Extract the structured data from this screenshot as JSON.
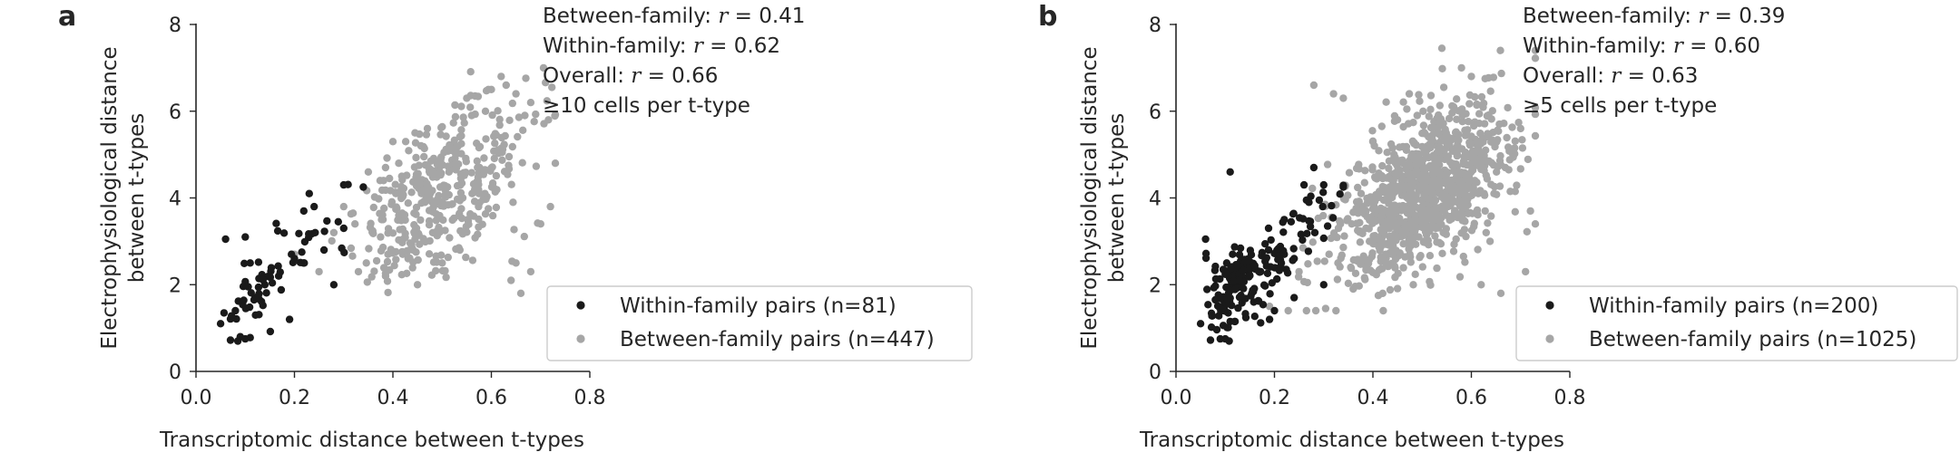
{
  "chart_data": [
    {
      "type": "scatter",
      "panel_label": "a",
      "xlabel": "Transcriptomic distance between t-types",
      "ylabel": [
        "Electrophysiological distance",
        "between t-types"
      ],
      "xlim": [
        0.0,
        0.8
      ],
      "ylim": [
        0,
        8
      ],
      "xticks": [
        "0.0",
        "0.2",
        "0.4",
        "0.6",
        "0.8"
      ],
      "yticks": [
        "0",
        "2",
        "4",
        "6",
        "8"
      ],
      "grid": false,
      "legend_position": "lower-right",
      "stats": [
        {
          "name": "Between-family",
          "r": "0.41"
        },
        {
          "name": "Within-family",
          "r": "0.62"
        },
        {
          "name": "Overall",
          "r": "0.66"
        }
      ],
      "note": "≥10 cells per t-type",
      "series": [
        {
          "name": "Within-family pairs (n=81)",
          "color": "#1a1a1a",
          "count": 81,
          "points": [
            [
              0.05,
              1.1
            ],
            [
              0.06,
              3.05
            ],
            [
              0.1,
              3.1
            ],
            [
              0.07,
              0.72
            ],
            [
              0.1,
              0.75
            ],
            [
              0.11,
              0.78
            ],
            [
              0.09,
              0.8
            ],
            [
              0.19,
              1.2
            ],
            [
              0.08,
              1.4
            ],
            [
              0.12,
              1.7
            ],
            [
              0.14,
              2.0
            ],
            [
              0.22,
              2.5
            ],
            [
              0.24,
              3.8
            ],
            [
              0.23,
              4.1
            ],
            [
              0.3,
              4.3
            ],
            [
              0.34,
              4.25
            ],
            [
              0.26,
              2.8
            ],
            [
              0.28,
              2.0
            ],
            [
              0.2,
              2.6
            ],
            [
              0.3,
              3.3
            ]
          ]
        },
        {
          "name": "Between-family pairs (n=447)",
          "color": "#a6a6a6",
          "count": 447,
          "points": [
            [
              0.2,
              2.7
            ],
            [
              0.25,
              2.3
            ],
            [
              0.28,
              3.2
            ],
            [
              0.3,
              3.8
            ],
            [
              0.33,
              2.3
            ],
            [
              0.38,
              3.5
            ],
            [
              0.42,
              2.7
            ],
            [
              0.45,
              2.0
            ],
            [
              0.5,
              2.5
            ],
            [
              0.62,
              6.8
            ],
            [
              0.6,
              6.5
            ],
            [
              0.63,
              6.6
            ],
            [
              0.65,
              6.4
            ],
            [
              0.7,
              3.4
            ],
            [
              0.72,
              3.8
            ],
            [
              0.68,
              2.3
            ],
            [
              0.65,
              2.5
            ],
            [
              0.55,
              6.3
            ],
            [
              0.4,
              5.3
            ],
            [
              0.47,
              5.6
            ],
            [
              0.35,
              4.6
            ],
            [
              0.66,
              1.8
            ],
            [
              0.64,
              2.1
            ]
          ]
        }
      ]
    },
    {
      "type": "scatter",
      "panel_label": "b",
      "xlabel": "Transcriptomic distance between t-types",
      "ylabel": [
        "Electrophysiological distance",
        "between t-types"
      ],
      "xlim": [
        0.0,
        0.8
      ],
      "ylim": [
        0,
        8
      ],
      "xticks": [
        "0.0",
        "0.2",
        "0.4",
        "0.6",
        "0.8"
      ],
      "yticks": [
        "0",
        "2",
        "4",
        "6",
        "8"
      ],
      "grid": false,
      "legend_position": "lower-right",
      "stats": [
        {
          "name": "Between-family",
          "r": "0.39"
        },
        {
          "name": "Within-family",
          "r": "0.60"
        },
        {
          "name": "Overall",
          "r": "0.63"
        }
      ],
      "note": "≥5 cells per t-type",
      "series": [
        {
          "name": "Within-family pairs (n=200)",
          "color": "#1a1a1a",
          "count": 200,
          "points": [
            [
              0.05,
              1.1
            ],
            [
              0.06,
              3.05
            ],
            [
              0.07,
              0.72
            ],
            [
              0.1,
              0.75
            ],
            [
              0.11,
              4.6
            ],
            [
              0.19,
              1.2
            ],
            [
              0.22,
              3.5
            ],
            [
              0.26,
              4.3
            ],
            [
              0.28,
              4.7
            ],
            [
              0.3,
              4.3
            ],
            [
              0.34,
              4.25
            ],
            [
              0.24,
              1.7
            ],
            [
              0.2,
              1.4
            ],
            [
              0.3,
              2.0
            ],
            [
              0.27,
              3.9
            ]
          ]
        },
        {
          "name": "Between-family pairs (n=1025)",
          "color": "#a6a6a6",
          "count": 1025,
          "points": [
            [
              0.19,
              1.5
            ],
            [
              0.28,
              6.6
            ],
            [
              0.32,
              6.4
            ],
            [
              0.34,
              6.3
            ],
            [
              0.25,
              2.3
            ],
            [
              0.36,
              1.9
            ],
            [
              0.42,
              1.8
            ],
            [
              0.54,
              7.45
            ],
            [
              0.58,
              7.0
            ],
            [
              0.6,
              6.8
            ],
            [
              0.72,
              3.7
            ],
            [
              0.73,
              3.4
            ],
            [
              0.7,
              5.6
            ],
            [
              0.71,
              2.3
            ],
            [
              0.66,
              1.8
            ],
            [
              0.62,
              2.0
            ],
            [
              0.45,
              5.8
            ],
            [
              0.4,
              5.3
            ],
            [
              0.33,
              3.3
            ]
          ]
        }
      ]
    }
  ]
}
